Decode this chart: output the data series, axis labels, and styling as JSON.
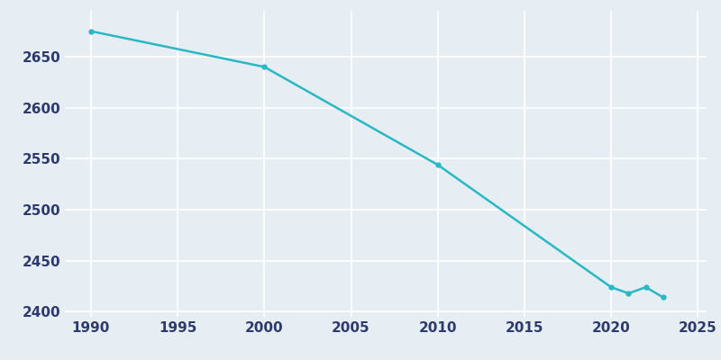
{
  "years": [
    1990,
    2000,
    2010,
    2020,
    2021,
    2022,
    2023
  ],
  "population": [
    2675,
    2640,
    2544,
    2424,
    2418,
    2424,
    2414
  ],
  "line_color": "#29b8c4",
  "marker": "o",
  "marker_size": 3.5,
  "line_width": 1.8,
  "bg_color": "#e6eef4",
  "plot_bg_color": "#e6eef4",
  "grid_color": "#ffffff",
  "tick_color": "#2e3a6e",
  "xlim": [
    1988.5,
    2025.5
  ],
  "ylim": [
    2395,
    2695
  ],
  "xticks": [
    1990,
    1995,
    2000,
    2005,
    2010,
    2015,
    2020,
    2025
  ],
  "yticks": [
    2400,
    2450,
    2500,
    2550,
    2600,
    2650
  ],
  "tick_fontsize": 11
}
